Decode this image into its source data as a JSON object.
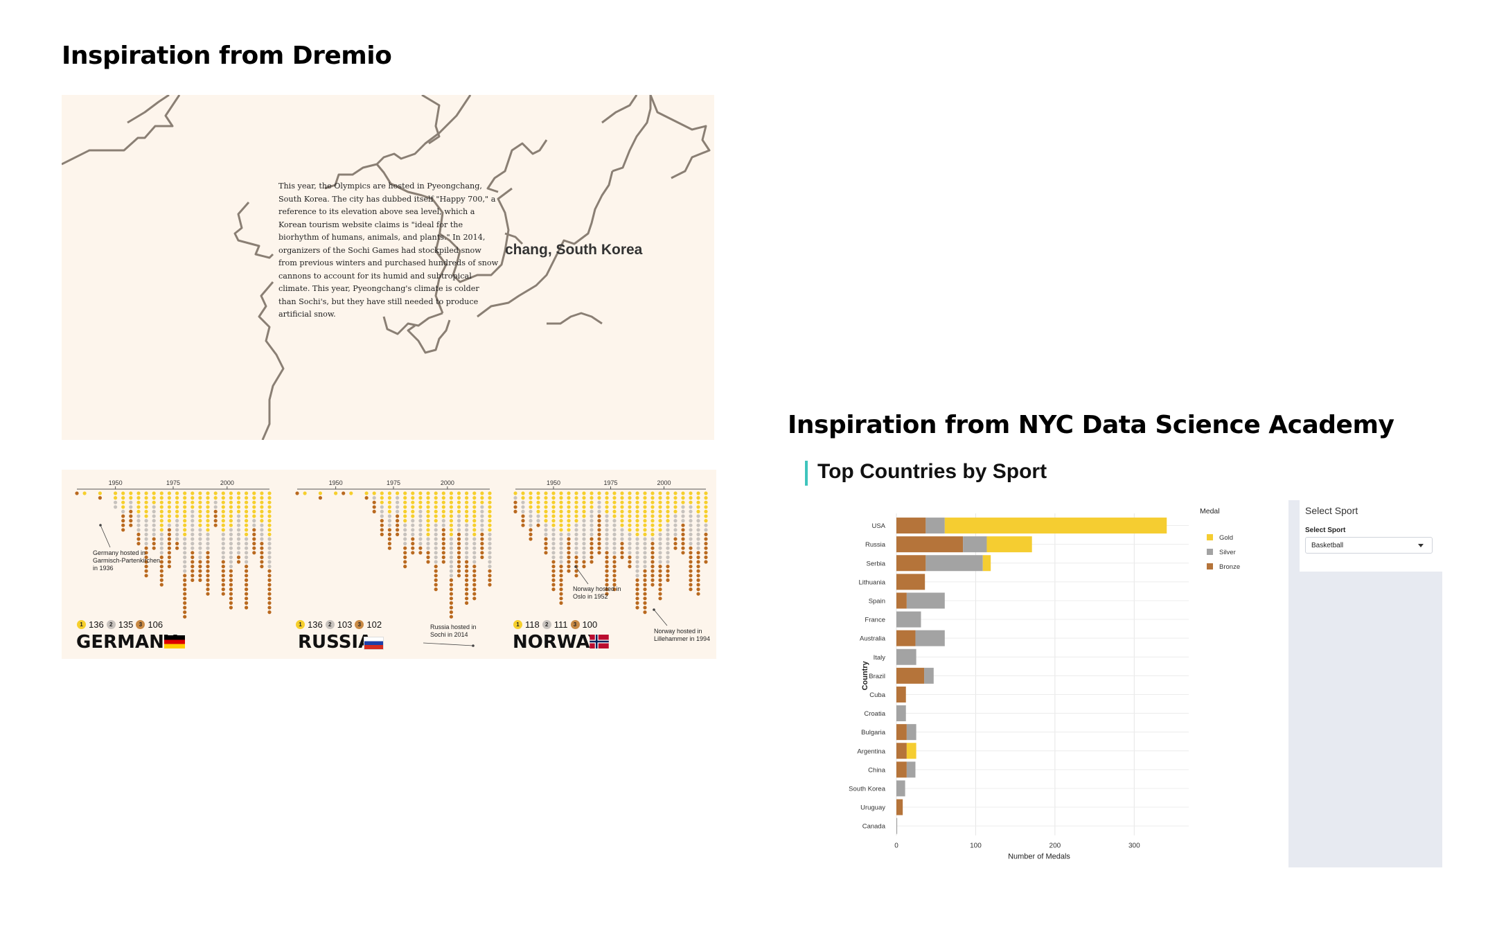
{
  "headings": {
    "left": "Inspiration from Dremio",
    "right": "Inspiration from NYC Data Science Academy"
  },
  "map_panel": {
    "paragraph": "This year, the Olympics are hosted in Pyeongchang, South Korea. The city has dubbed itself \"Happy 700,\" a reference to its elevation above sea level, which a Korean tourism website claims is \"ideal for the biorhythm of humans, animals, and plants.\" In 2014, organizers of the Sochi Games had stockpiled snow from previous winters and purchased hundreds of snow cannons to account for its humid and subtropical climate. This year, Pyeongchang's climate is colder than Sochi's, but they have still needed to produce artificial snow.",
    "place_label": "chang, South Korea"
  },
  "medal_panel": {
    "colors": {
      "gold": "#f6cf2c",
      "silver": "#c7c2bd",
      "bronze": "#b9691f"
    },
    "countries": [
      {
        "name": "GERMANY",
        "gold": "136",
        "silver": "135",
        "bronze": "106",
        "annotation": "Germany hosted in Garmisch-Partenkirchen in 1936",
        "axis_ticks": [
          "1950",
          "1975",
          "2000"
        ],
        "flag": "germany-flag-icon"
      },
      {
        "name": "RUSSIA",
        "gold": "136",
        "silver": "103",
        "bronze": "102",
        "annotation": "Russia hosted in Sochi in 2014",
        "axis_ticks": [
          "1950",
          "1975",
          "2000"
        ],
        "flag": "russia-flag-icon"
      },
      {
        "name": "NORWAY",
        "gold": "118",
        "silver": "111",
        "bronze": "100",
        "annotations": [
          "Norway hosted in Oslo in 1952",
          "Norway hosted in Lillehammer in 1994"
        ],
        "axis_ticks": [
          "1950",
          "1975",
          "2000"
        ],
        "flag": "norway-flag-icon"
      }
    ],
    "medal_rank_labels": [
      "1",
      "2",
      "3"
    ]
  },
  "dashboard": {
    "section_title": "Top Countries by Sport",
    "sidebar": {
      "title": "Select Sport",
      "label": "Select Sport",
      "selected": "Basketball"
    }
  },
  "chart_data": {
    "type": "bar",
    "orientation": "horizontal",
    "stacked": true,
    "title": "",
    "xlabel": "Number of Medals",
    "ylabel": "Country",
    "xlim": [
      0,
      360
    ],
    "xticks": [
      0,
      100,
      200,
      300
    ],
    "legend_title": "Medal",
    "legend_position": "right",
    "grid": true,
    "categories": [
      "USA",
      "Russia",
      "Serbia",
      "Lithuania",
      "Spain",
      "France",
      "Australia",
      "Italy",
      "Brazil",
      "Cuba",
      "Croatia",
      "Bulgaria",
      "Argentina",
      "China",
      "South Korea",
      "Uruguay",
      "Canada"
    ],
    "series": [
      {
        "name": "Bronze",
        "color": "#b5743a",
        "values": [
          37,
          84,
          37,
          36,
          13,
          0,
          24,
          0,
          35,
          12,
          0,
          13,
          13,
          13,
          0,
          8,
          0
        ]
      },
      {
        "name": "Silver",
        "color": "#a3a3a3",
        "values": [
          24,
          30,
          72,
          0,
          48,
          31,
          37,
          25,
          12,
          0,
          12,
          12,
          0,
          11,
          11,
          0,
          1
        ]
      },
      {
        "name": "Gold",
        "color": "#f5cd31",
        "values": [
          280,
          57,
          10,
          0,
          0,
          0,
          0,
          0,
          0,
          0,
          0,
          0,
          12,
          0,
          0,
          0,
          0
        ]
      }
    ]
  }
}
